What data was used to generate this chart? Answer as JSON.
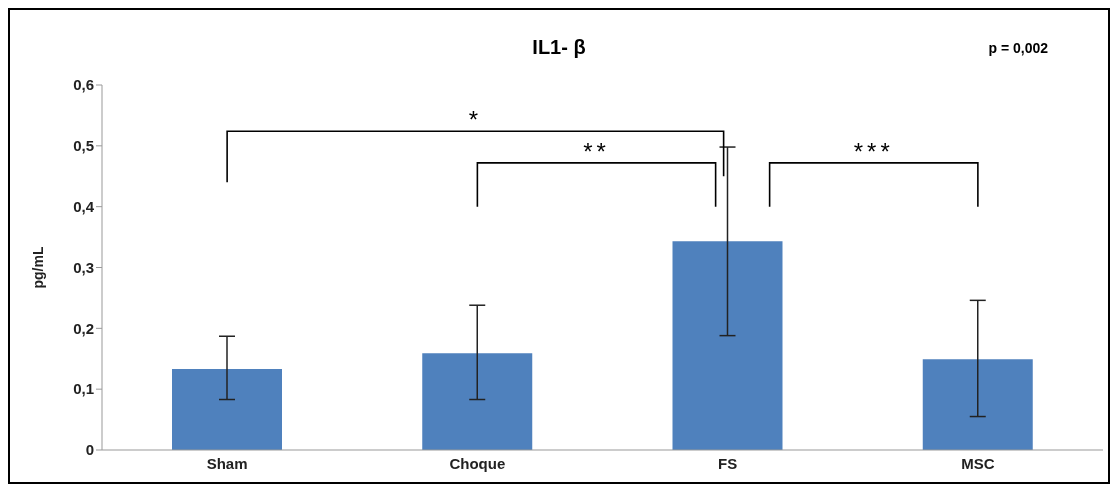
{
  "chart_data": {
    "type": "bar",
    "title": "IL1- β",
    "ylabel": "pg/mL",
    "categories": [
      "Sham",
      "Choque",
      "FS",
      "MSC"
    ],
    "values": [
      0.133,
      0.159,
      0.343,
      0.149
    ],
    "errors": [
      [
        0.083,
        0.187
      ],
      [
        0.083,
        0.238
      ],
      [
        0.188,
        0.498
      ],
      [
        0.055,
        0.246
      ]
    ],
    "color": "#4f81bd",
    "ylim": [
      0,
      0.6
    ],
    "yticks": [
      {
        "value": 0,
        "label": "0"
      },
      {
        "value": 0.1,
        "label": "0,1"
      },
      {
        "value": 0.2,
        "label": "0,2"
      },
      {
        "value": 0.3,
        "label": "0,3"
      },
      {
        "value": 0.4,
        "label": "0,4"
      },
      {
        "value": 0.5,
        "label": "0,5"
      },
      {
        "value": 0.6,
        "label": "0,6"
      }
    ],
    "grid": false,
    "legend": false,
    "annotations": [
      "*",
      "**",
      "***",
      "p = 0,002"
    ]
  }
}
